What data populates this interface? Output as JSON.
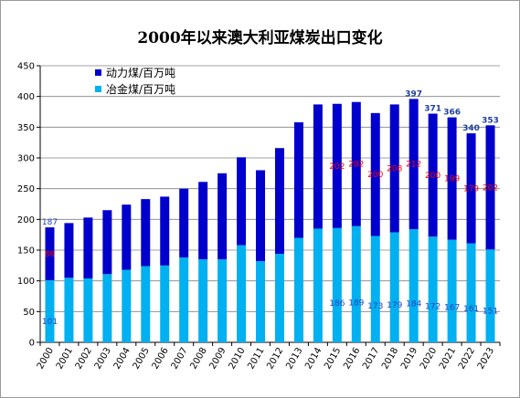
{
  "chart_data": {
    "type": "bar",
    "stacked": true,
    "title": "2000年以来澳大利亚煤炭出口变化",
    "ylim": [
      0,
      450
    ],
    "yticks": [
      0,
      50,
      100,
      150,
      200,
      250,
      300,
      350,
      400,
      450
    ],
    "grid": true,
    "legend_position": "top-left",
    "categories": [
      "2000",
      "2001",
      "2002",
      "2003",
      "2004",
      "2005",
      "2006",
      "2007",
      "2008",
      "2009",
      "2010",
      "2011",
      "2012",
      "2013",
      "2014",
      "2015",
      "2016",
      "2017",
      "2018",
      "2019",
      "2020",
      "2021",
      "2022",
      "2023"
    ],
    "series": [
      {
        "name": "冶金煤/百万吨",
        "color": "#00b0f0",
        "values": [
          101,
          105,
          104,
          111,
          118,
          124,
          125,
          138,
          135,
          135,
          158,
          132,
          144,
          170,
          185,
          186,
          189,
          173,
          179,
          184,
          172,
          167,
          161,
          151
        ],
        "data_labels": [
          "101",
          "",
          "",
          "",
          "",
          "",
          "",
          "",
          "",
          "",
          "",
          "",
          "",
          "",
          "",
          "186",
          "189",
          "173",
          "179",
          "184",
          "172",
          "167",
          "161",
          "151"
        ]
      },
      {
        "name": "动力煤/百万吨",
        "color": "#0000cc",
        "values": [
          86,
          89,
          99,
          104,
          106,
          109,
          112,
          112,
          126,
          140,
          143,
          148,
          172,
          188,
          202,
          202,
          202,
          200,
          208,
          212,
          200,
          199,
          179,
          202
        ],
        "data_labels": [
          "86",
          "",
          "",
          "",
          "",
          "",
          "",
          "",
          "",
          "",
          "",
          "",
          "",
          "",
          "",
          "202",
          "202",
          "200",
          "208",
          "212",
          "200",
          "199",
          "179",
          "202"
        ]
      }
    ],
    "total_labels": [
      "187",
      "",
      "",
      "",
      "",
      "",
      "",
      "",
      "",
      "",
      "",
      "",
      "",
      "",
      "",
      "",
      "",
      "",
      "",
      "397",
      "371",
      "366",
      "340",
      "353"
    ]
  },
  "colors": {
    "total_label_first": "#1f3fbf",
    "total_label": "#1f3f9f",
    "thermal_label": "#ff0000",
    "met_label": "#1f3fbf",
    "grid": "#808080"
  }
}
